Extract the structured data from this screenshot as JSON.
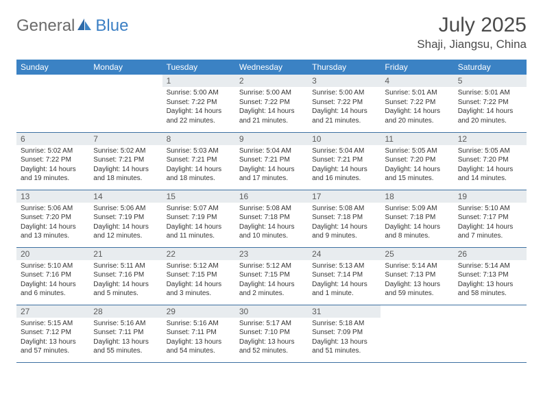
{
  "logo": {
    "text1": "General",
    "text2": "Blue"
  },
  "title": "July 2025",
  "location": "Shaji, Jiangsu, China",
  "colors": {
    "header_bg": "#3b82c4",
    "header_text": "#ffffff",
    "daynum_bg": "#e8ecef",
    "border": "#3b6fa0",
    "logo_gray": "#6b6b6b",
    "logo_blue": "#3b7fc4"
  },
  "weekdays": [
    "Sunday",
    "Monday",
    "Tuesday",
    "Wednesday",
    "Thursday",
    "Friday",
    "Saturday"
  ],
  "weeks": [
    [
      null,
      null,
      {
        "n": "1",
        "sr": "Sunrise: 5:00 AM",
        "ss": "Sunset: 7:22 PM",
        "d1": "Daylight: 14 hours",
        "d2": "and 22 minutes."
      },
      {
        "n": "2",
        "sr": "Sunrise: 5:00 AM",
        "ss": "Sunset: 7:22 PM",
        "d1": "Daylight: 14 hours",
        "d2": "and 21 minutes."
      },
      {
        "n": "3",
        "sr": "Sunrise: 5:00 AM",
        "ss": "Sunset: 7:22 PM",
        "d1": "Daylight: 14 hours",
        "d2": "and 21 minutes."
      },
      {
        "n": "4",
        "sr": "Sunrise: 5:01 AM",
        "ss": "Sunset: 7:22 PM",
        "d1": "Daylight: 14 hours",
        "d2": "and 20 minutes."
      },
      {
        "n": "5",
        "sr": "Sunrise: 5:01 AM",
        "ss": "Sunset: 7:22 PM",
        "d1": "Daylight: 14 hours",
        "d2": "and 20 minutes."
      }
    ],
    [
      {
        "n": "6",
        "sr": "Sunrise: 5:02 AM",
        "ss": "Sunset: 7:22 PM",
        "d1": "Daylight: 14 hours",
        "d2": "and 19 minutes."
      },
      {
        "n": "7",
        "sr": "Sunrise: 5:02 AM",
        "ss": "Sunset: 7:21 PM",
        "d1": "Daylight: 14 hours",
        "d2": "and 18 minutes."
      },
      {
        "n": "8",
        "sr": "Sunrise: 5:03 AM",
        "ss": "Sunset: 7:21 PM",
        "d1": "Daylight: 14 hours",
        "d2": "and 18 minutes."
      },
      {
        "n": "9",
        "sr": "Sunrise: 5:04 AM",
        "ss": "Sunset: 7:21 PM",
        "d1": "Daylight: 14 hours",
        "d2": "and 17 minutes."
      },
      {
        "n": "10",
        "sr": "Sunrise: 5:04 AM",
        "ss": "Sunset: 7:21 PM",
        "d1": "Daylight: 14 hours",
        "d2": "and 16 minutes."
      },
      {
        "n": "11",
        "sr": "Sunrise: 5:05 AM",
        "ss": "Sunset: 7:20 PM",
        "d1": "Daylight: 14 hours",
        "d2": "and 15 minutes."
      },
      {
        "n": "12",
        "sr": "Sunrise: 5:05 AM",
        "ss": "Sunset: 7:20 PM",
        "d1": "Daylight: 14 hours",
        "d2": "and 14 minutes."
      }
    ],
    [
      {
        "n": "13",
        "sr": "Sunrise: 5:06 AM",
        "ss": "Sunset: 7:20 PM",
        "d1": "Daylight: 14 hours",
        "d2": "and 13 minutes."
      },
      {
        "n": "14",
        "sr": "Sunrise: 5:06 AM",
        "ss": "Sunset: 7:19 PM",
        "d1": "Daylight: 14 hours",
        "d2": "and 12 minutes."
      },
      {
        "n": "15",
        "sr": "Sunrise: 5:07 AM",
        "ss": "Sunset: 7:19 PM",
        "d1": "Daylight: 14 hours",
        "d2": "and 11 minutes."
      },
      {
        "n": "16",
        "sr": "Sunrise: 5:08 AM",
        "ss": "Sunset: 7:18 PM",
        "d1": "Daylight: 14 hours",
        "d2": "and 10 minutes."
      },
      {
        "n": "17",
        "sr": "Sunrise: 5:08 AM",
        "ss": "Sunset: 7:18 PM",
        "d1": "Daylight: 14 hours",
        "d2": "and 9 minutes."
      },
      {
        "n": "18",
        "sr": "Sunrise: 5:09 AM",
        "ss": "Sunset: 7:18 PM",
        "d1": "Daylight: 14 hours",
        "d2": "and 8 minutes."
      },
      {
        "n": "19",
        "sr": "Sunrise: 5:10 AM",
        "ss": "Sunset: 7:17 PM",
        "d1": "Daylight: 14 hours",
        "d2": "and 7 minutes."
      }
    ],
    [
      {
        "n": "20",
        "sr": "Sunrise: 5:10 AM",
        "ss": "Sunset: 7:16 PM",
        "d1": "Daylight: 14 hours",
        "d2": "and 6 minutes."
      },
      {
        "n": "21",
        "sr": "Sunrise: 5:11 AM",
        "ss": "Sunset: 7:16 PM",
        "d1": "Daylight: 14 hours",
        "d2": "and 5 minutes."
      },
      {
        "n": "22",
        "sr": "Sunrise: 5:12 AM",
        "ss": "Sunset: 7:15 PM",
        "d1": "Daylight: 14 hours",
        "d2": "and 3 minutes."
      },
      {
        "n": "23",
        "sr": "Sunrise: 5:12 AM",
        "ss": "Sunset: 7:15 PM",
        "d1": "Daylight: 14 hours",
        "d2": "and 2 minutes."
      },
      {
        "n": "24",
        "sr": "Sunrise: 5:13 AM",
        "ss": "Sunset: 7:14 PM",
        "d1": "Daylight: 14 hours",
        "d2": "and 1 minute."
      },
      {
        "n": "25",
        "sr": "Sunrise: 5:14 AM",
        "ss": "Sunset: 7:13 PM",
        "d1": "Daylight: 13 hours",
        "d2": "and 59 minutes."
      },
      {
        "n": "26",
        "sr": "Sunrise: 5:14 AM",
        "ss": "Sunset: 7:13 PM",
        "d1": "Daylight: 13 hours",
        "d2": "and 58 minutes."
      }
    ],
    [
      {
        "n": "27",
        "sr": "Sunrise: 5:15 AM",
        "ss": "Sunset: 7:12 PM",
        "d1": "Daylight: 13 hours",
        "d2": "and 57 minutes."
      },
      {
        "n": "28",
        "sr": "Sunrise: 5:16 AM",
        "ss": "Sunset: 7:11 PM",
        "d1": "Daylight: 13 hours",
        "d2": "and 55 minutes."
      },
      {
        "n": "29",
        "sr": "Sunrise: 5:16 AM",
        "ss": "Sunset: 7:11 PM",
        "d1": "Daylight: 13 hours",
        "d2": "and 54 minutes."
      },
      {
        "n": "30",
        "sr": "Sunrise: 5:17 AM",
        "ss": "Sunset: 7:10 PM",
        "d1": "Daylight: 13 hours",
        "d2": "and 52 minutes."
      },
      {
        "n": "31",
        "sr": "Sunrise: 5:18 AM",
        "ss": "Sunset: 7:09 PM",
        "d1": "Daylight: 13 hours",
        "d2": "and 51 minutes."
      },
      null,
      null
    ]
  ]
}
